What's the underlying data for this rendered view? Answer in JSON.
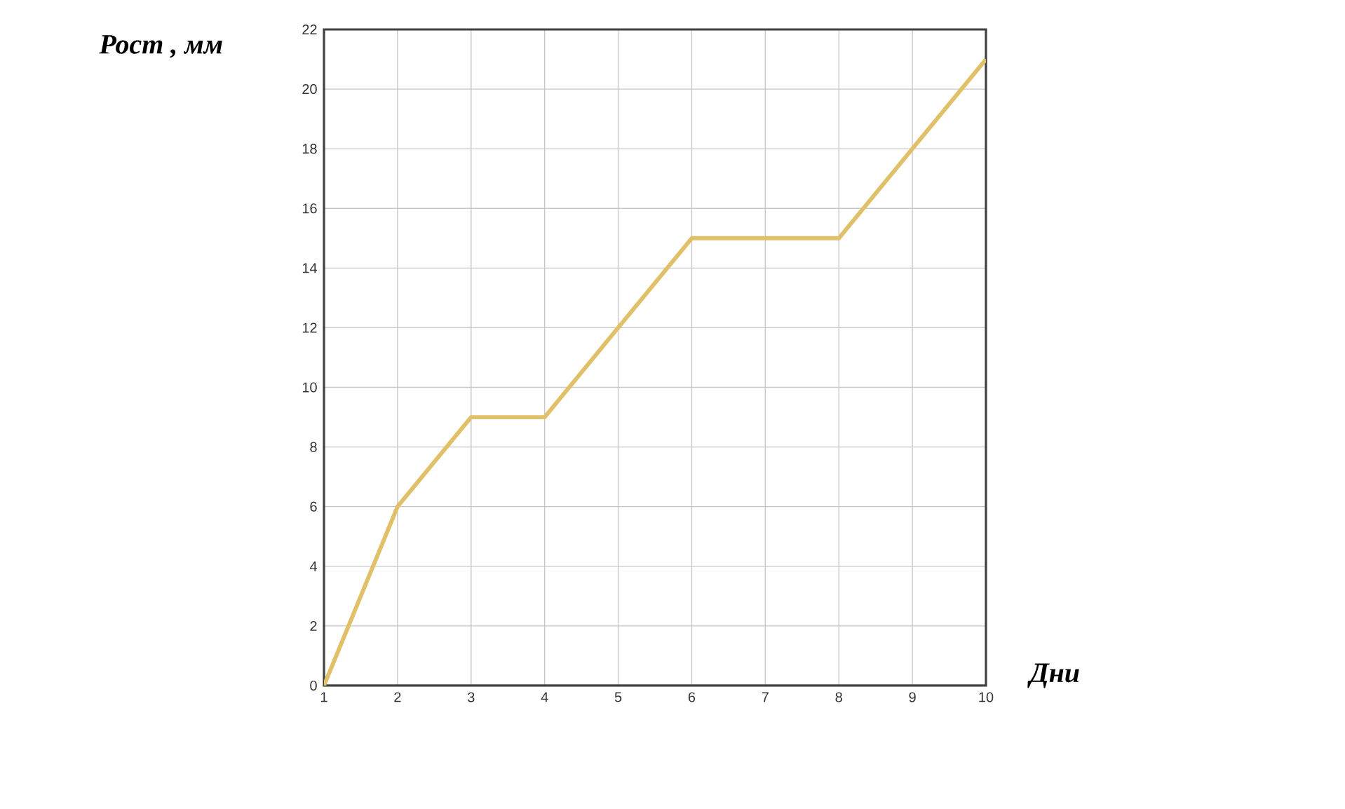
{
  "chart_data": {
    "type": "line",
    "xlabel": "Дни",
    "ylabel": "Рост , мм",
    "x": [
      1,
      2,
      3,
      4,
      5,
      6,
      7,
      8,
      9,
      10
    ],
    "values": [
      0,
      6,
      9,
      9,
      12,
      15,
      15,
      15,
      18,
      21
    ],
    "color": "#e0c068",
    "xlim": [
      1,
      10
    ],
    "ylim": [
      0,
      22
    ],
    "xticks": [
      1,
      2,
      3,
      4,
      5,
      6,
      7,
      8,
      9,
      10
    ],
    "yticks": [
      0,
      2,
      4,
      6,
      8,
      10,
      12,
      14,
      16,
      18,
      20,
      22
    ],
    "grid": true
  }
}
